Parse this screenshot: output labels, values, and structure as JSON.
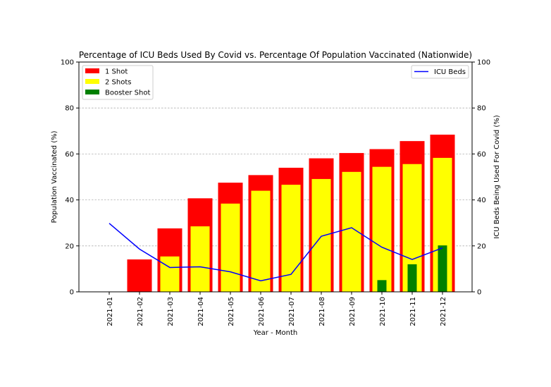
{
  "chart_data": {
    "type": "bar",
    "title": "Percentage of ICU Beds Used By Covid vs. Percentage Of Population Vaccinated (Nationwide)",
    "xlabel": "Year - Month",
    "ylabel": "Population Vaccinated (%)",
    "ylabel_right": "ICU Beds Being Used For Covid (%)",
    "ylim": [
      0,
      100
    ],
    "ylim_right": [
      0,
      100
    ],
    "yticks": [
      0,
      20,
      40,
      60,
      80,
      100
    ],
    "grid": "horizontal dashed",
    "categories": [
      "2021-01",
      "2021-02",
      "2021-03",
      "2021-04",
      "2021-05",
      "2021-06",
      "2021-07",
      "2021-08",
      "2021-09",
      "2021-10",
      "2021-11",
      "2021-12"
    ],
    "series": [
      {
        "name": "1 Shot",
        "axis": "left",
        "kind": "bar",
        "color": "#ff0000",
        "values": [
          0,
          14.1,
          27.6,
          40.7,
          47.5,
          50.8,
          54.0,
          58.1,
          60.4,
          62.1,
          65.6,
          68.4
        ]
      },
      {
        "name": "2 Shots",
        "axis": "left",
        "kind": "bar",
        "color": "#ffff00",
        "values": [
          0,
          0,
          15.4,
          28.5,
          38.4,
          44.0,
          46.6,
          49.1,
          52.2,
          54.4,
          55.6,
          58.3
        ]
      },
      {
        "name": "Booster Shot",
        "axis": "left",
        "kind": "bar",
        "color": "#008000",
        "values": [
          0,
          0,
          0,
          0,
          0,
          0,
          0,
          0,
          0,
          5.1,
          12.0,
          20.2
        ]
      },
      {
        "name": "ICU Beds",
        "axis": "right",
        "kind": "line",
        "color": "#0000ff",
        "values": [
          29.8,
          18.6,
          10.6,
          10.9,
          8.7,
          4.8,
          7.6,
          24.2,
          27.9,
          19.4,
          14.1,
          19.1
        ]
      }
    ],
    "legend_left": {
      "placement": "upper-left",
      "entries": [
        "1 Shot",
        "2 Shots",
        "Booster Shot"
      ]
    },
    "legend_right": {
      "placement": "upper-right",
      "entries": [
        "ICU Beds"
      ]
    }
  }
}
